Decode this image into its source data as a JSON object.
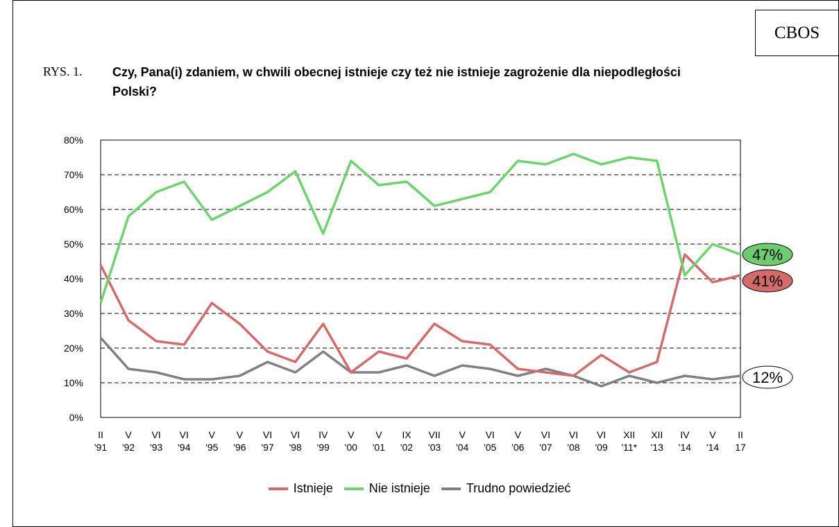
{
  "header": {
    "source": "CBOS",
    "figure_label": "RYS. 1.",
    "title": "Czy, Pana(i) zdaniem, w chwili obecnej istnieje czy też nie istnieje zagrożenie dla niepodległości Polski?"
  },
  "chart_data": {
    "type": "line",
    "title": "Czy, Pana(i) zdaniem, w chwili obecnej istnieje czy też nie istnieje zagrożenie dla niepodległości Polski?",
    "xlabel": "",
    "ylabel": "",
    "ylim": [
      0,
      80
    ],
    "y_ticks": [
      "0%",
      "10%",
      "20%",
      "30%",
      "40%",
      "50%",
      "60%",
      "70%",
      "80%"
    ],
    "grid": "horizontal-dashed",
    "legend_position": "bottom",
    "categories": [
      [
        "II",
        "'91"
      ],
      [
        "V",
        "'92"
      ],
      [
        "VI",
        "'93"
      ],
      [
        "VI",
        "'94"
      ],
      [
        "V",
        "'95"
      ],
      [
        "V",
        "'96"
      ],
      [
        "VI",
        "'97"
      ],
      [
        "VI",
        "'98"
      ],
      [
        "IV",
        "'99"
      ],
      [
        "V",
        "'00"
      ],
      [
        "V",
        "'01"
      ],
      [
        "IX",
        "'02"
      ],
      [
        "VII",
        "'03"
      ],
      [
        "V",
        "'04"
      ],
      [
        "VI",
        "'05"
      ],
      [
        "V",
        "'06"
      ],
      [
        "VI",
        "'07"
      ],
      [
        "VI",
        "'08"
      ],
      [
        "VI",
        "'09"
      ],
      [
        "XII",
        "'11*"
      ],
      [
        "XII",
        "'13"
      ],
      [
        "IV",
        "'14"
      ],
      [
        "V",
        "'14"
      ],
      [
        "II",
        "17"
      ]
    ],
    "series": [
      {
        "name": "Istnieje",
        "color": "#d46a6a",
        "values": [
          44,
          28,
          22,
          21,
          33,
          27,
          19,
          16,
          27,
          13,
          19,
          17,
          27,
          22,
          21,
          14,
          13,
          12,
          18,
          13,
          16,
          47,
          39,
          41
        ],
        "end_label": "41%",
        "end_fill": "#d46a6a"
      },
      {
        "name": "Nie istnieje",
        "color": "#6dd46d",
        "values": [
          33,
          58,
          65,
          68,
          57,
          61,
          65,
          71,
          53,
          74,
          67,
          68,
          61,
          63,
          65,
          74,
          73,
          76,
          73,
          75,
          74,
          41,
          50,
          47
        ],
        "end_label": "47%",
        "end_fill": "#6dcc6d"
      },
      {
        "name": "Trudno powiedzieć",
        "color": "#808080",
        "values": [
          23,
          14,
          13,
          11,
          11,
          12,
          16,
          13,
          19,
          13,
          13,
          15,
          12,
          15,
          14,
          12,
          14,
          12,
          9,
          12,
          10,
          12,
          11,
          12
        ],
        "end_label": "12%",
        "end_fill": "#ffffff"
      }
    ]
  }
}
